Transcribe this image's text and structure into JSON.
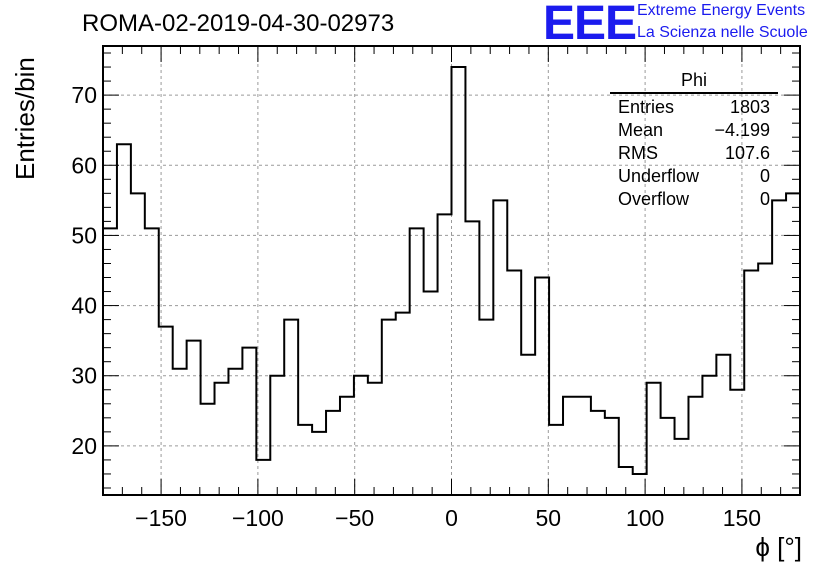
{
  "chart_data": {
    "type": "histogram",
    "title": "ROMA-02-2019-04-30-02973",
    "xlabel": "ϕ [°]",
    "ylabel": "Entries/bin",
    "xlim": [
      -180,
      180
    ],
    "ylim": [
      13,
      77
    ],
    "bin_width": 7.2,
    "x_ticks": [
      -150,
      -100,
      -50,
      0,
      50,
      100,
      150
    ],
    "x_tick_labels": [
      "−150",
      "−100",
      "−50",
      "0",
      "50",
      "100",
      "150"
    ],
    "y_ticks": [
      20,
      30,
      40,
      50,
      60,
      70
    ],
    "y_tick_labels": [
      "20",
      "30",
      "40",
      "50",
      "60",
      "70"
    ],
    "grid": true,
    "values": [
      51,
      63,
      56,
      51,
      37,
      31,
      35,
      26,
      29,
      31,
      34,
      18,
      30,
      38,
      23,
      22,
      25,
      27,
      30,
      29,
      38,
      39,
      51,
      42,
      53,
      74,
      52,
      38,
      55,
      45,
      33,
      44,
      23,
      27,
      27,
      25,
      24,
      17,
      16,
      29,
      24,
      21,
      27,
      30,
      33,
      28,
      45,
      46,
      55,
      56
    ],
    "stats_box": {
      "title": "Phi",
      "rows": [
        {
          "label": "Entries",
          "value": "1803"
        },
        {
          "label": "Mean",
          "value": "−4.199"
        },
        {
          "label": "RMS",
          "value": "107.6"
        },
        {
          "label": "Underflow",
          "value": "0"
        },
        {
          "label": "Overflow",
          "value": "0"
        }
      ]
    }
  },
  "branding": {
    "logo": "EEE",
    "line1": "Extreme Energy Events",
    "line2": "La Scienza nelle Scuole",
    "color": "#1b1bee"
  }
}
